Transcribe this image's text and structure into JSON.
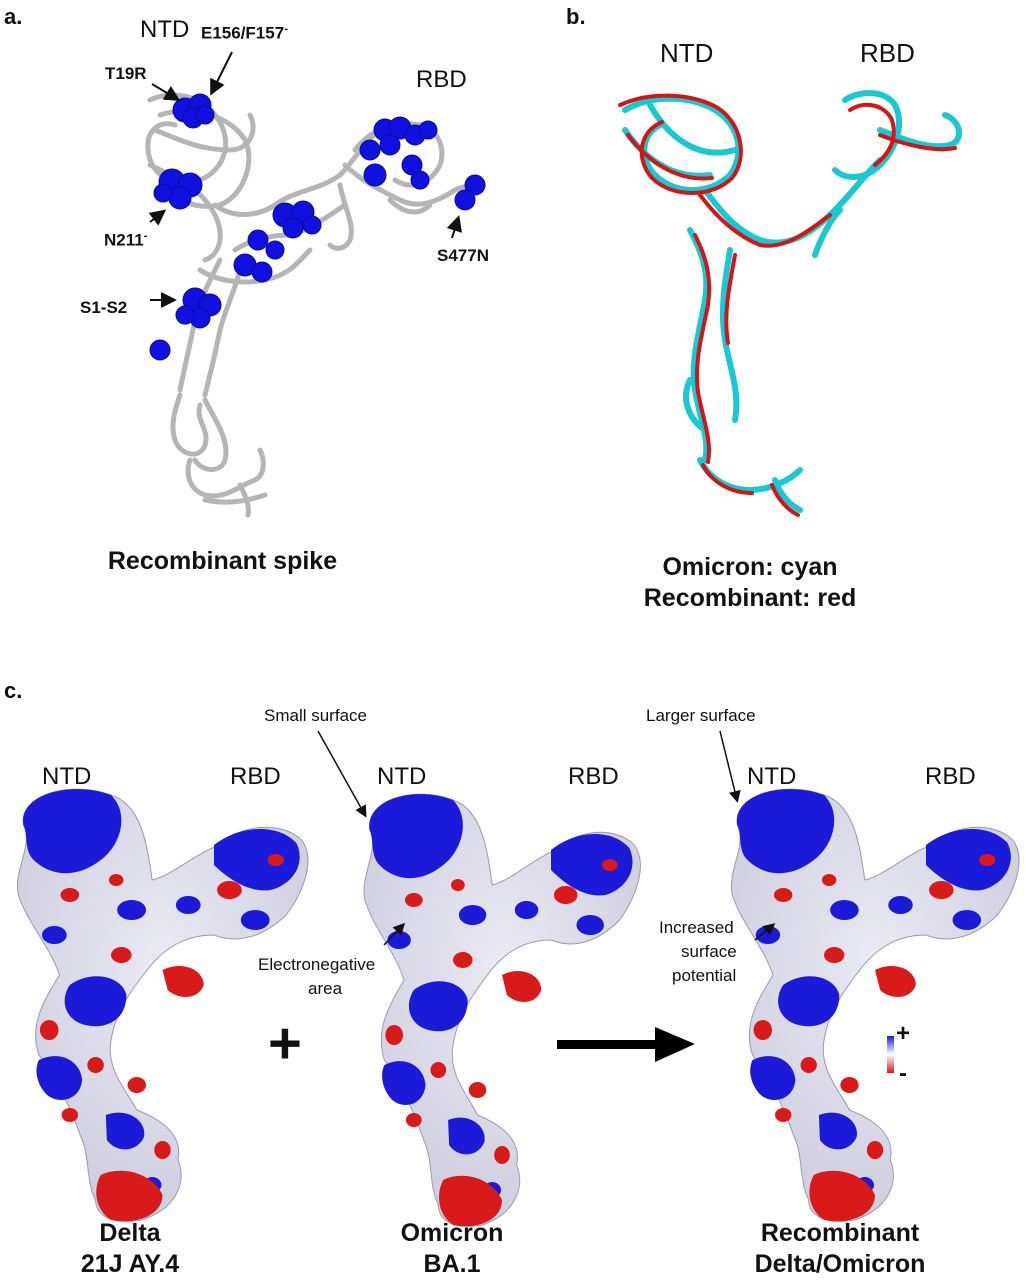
{
  "panel_a": {
    "letter": "a.",
    "ntd": "NTD",
    "rbd": "RBD",
    "mutations": {
      "t19r": "T19R",
      "e156": "E156/F157",
      "e156_sup": "-",
      "n211": "N211",
      "n211_sup": "-",
      "s1s2": "S1-S2",
      "s477n": "S477N"
    },
    "caption": "Recombinant spike",
    "colors": {
      "backbone": "#b5b5b5",
      "highlight": "#1010e0"
    }
  },
  "panel_b": {
    "letter": "b.",
    "ntd": "NTD",
    "rbd": "RBD",
    "caption_line1": "Omicron: cyan",
    "caption_line2": "Recombinant: red",
    "colors": {
      "omicron": "#19c8d2",
      "recombinant": "#d51515"
    }
  },
  "panel_c": {
    "letter": "c.",
    "structures": [
      {
        "ntd": "NTD",
        "rbd": "RBD",
        "caption_line1": "Delta",
        "caption_line2": "21J AY.4"
      },
      {
        "ntd": "NTD",
        "rbd": "RBD",
        "caption_line1": "Omicron",
        "caption_line2": "BA.1"
      },
      {
        "ntd": "NTD",
        "rbd": "RBD",
        "caption_line1": "Recombinant",
        "caption_line2": "Delta/Omicron"
      }
    ],
    "annotations": {
      "small_surface": "Small surface",
      "larger_surface": "Larger surface",
      "electronegative_1": "Electronegative",
      "electronegative_2": "area",
      "increased_1": "Increased",
      "increased_2": "surface",
      "increased_3": "potential"
    },
    "plus_symbol": "+",
    "scale_plus": "+",
    "scale_minus": "-",
    "colors": {
      "positive": "#1a1ad8",
      "negative": "#d81a1a",
      "neutral": "#e6e6e6"
    }
  }
}
